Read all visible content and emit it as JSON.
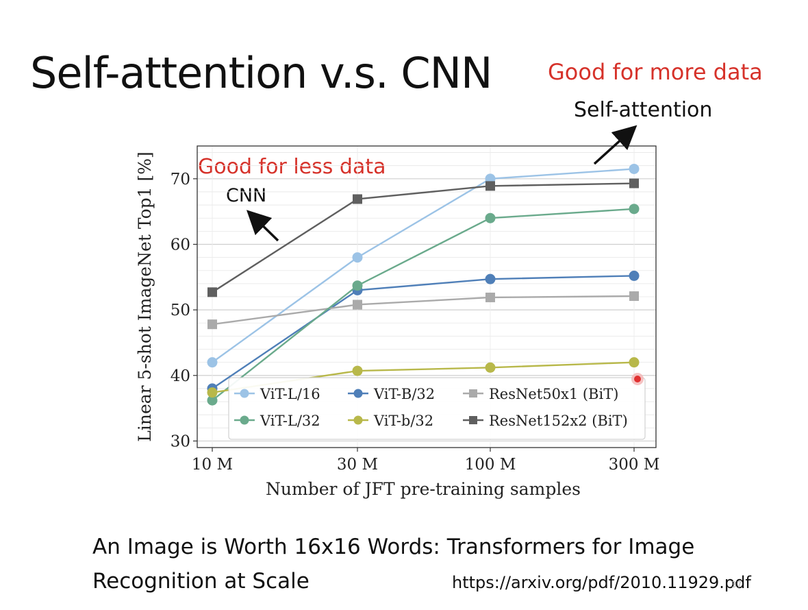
{
  "slide": {
    "title": "Self-attention v.s. CNN",
    "note_more_data": "Good for more data",
    "note_less_data": "Good for less data",
    "arrow_label_sa": "Self-attention",
    "arrow_label_cnn": "CNN",
    "paper_title": "An Image is Worth 16x16 Words: Transformers for Image Recognition at Scale",
    "url": "https://arxiv.org/pdf/2010.11929.pdf",
    "page_number": "37"
  },
  "chart_data": {
    "type": "line",
    "xlabel": "Number of JFT pre-training samples",
    "ylabel": "Linear 5-shot ImageNet Top1 [%]",
    "x_scale": "log",
    "categories": [
      "10 M",
      "30 M",
      "100 M",
      "300 M"
    ],
    "ylim": [
      29,
      75
    ],
    "yticks": [
      30,
      40,
      50,
      60,
      70
    ],
    "grid": true,
    "legend_position": "bottom",
    "series": [
      {
        "name": "ViT-L/16",
        "color": "#9cc3e6",
        "marker": "circle",
        "values": [
          42,
          58,
          70,
          71.5
        ]
      },
      {
        "name": "ViT-B/32",
        "color": "#4f7fb8",
        "marker": "circle",
        "values": [
          38,
          53,
          54.7,
          55.2
        ]
      },
      {
        "name": "ResNet50x1 (BiT)",
        "color": "#aaaaaa",
        "marker": "square",
        "values": [
          47.8,
          50.8,
          51.9,
          52.1
        ]
      },
      {
        "name": "ViT-L/32",
        "color": "#6aaa8c",
        "marker": "circle",
        "values": [
          36.2,
          53.7,
          64,
          65.4
        ]
      },
      {
        "name": "ViT-b/32",
        "color": "#b8b84a",
        "marker": "circle",
        "values": [
          37.4,
          40.7,
          41.2,
          42
        ]
      },
      {
        "name": "ResNet152x2 (BiT)",
        "color": "#5f5f5f",
        "marker": "square",
        "values": [
          52.7,
          66.9,
          68.9,
          69.3
        ]
      }
    ]
  },
  "colors": {
    "accent_red": "#d6322a",
    "pointer_dot": "#e03030"
  }
}
